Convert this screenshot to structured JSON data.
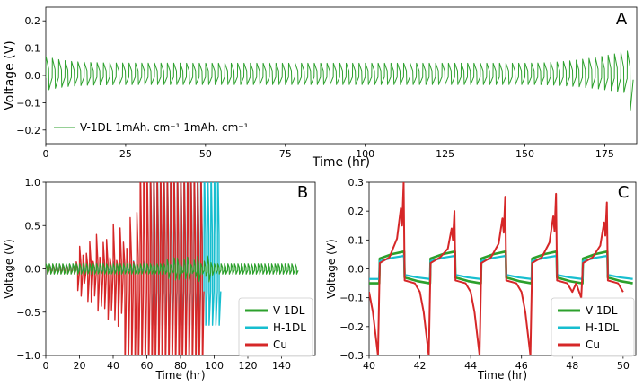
{
  "chart_data": [
    {
      "type": "line",
      "panel_label": "A",
      "xlabel": "Time (hr)",
      "ylabel": "Voltage (V)",
      "xlim": [
        0,
        185
      ],
      "ylim": [
        -0.25,
        0.25
      ],
      "xticks": [
        0,
        25,
        50,
        75,
        100,
        125,
        150,
        175
      ],
      "yticks": [
        -0.2,
        -0.1,
        0.0,
        0.1,
        0.2
      ],
      "legend_position": "lower-left",
      "series": [
        {
          "name": "V-1DL",
          "legend_label": "V-1DL 1mAh. cm⁻¹ 1mAh. cm⁻¹",
          "color": "#2ca02c",
          "cycle_period_hr": 2,
          "start_hr": 0,
          "end_hr": 184,
          "peak_voltage_start": 0.07,
          "peak_voltage_mid": 0.045,
          "peak_voltage_end": 0.095,
          "min_voltage_end": -0.13
        }
      ]
    },
    {
      "type": "line",
      "panel_label": "B",
      "xlabel": "Time (hr)",
      "ylabel": "Voltage (V)",
      "xlim": [
        0,
        160
      ],
      "ylim": [
        -1.0,
        1.0
      ],
      "xticks": [
        0,
        20,
        40,
        60,
        80,
        100,
        120,
        140
      ],
      "yticks": [
        -1.0,
        -0.5,
        0.0,
        0.5,
        1.0
      ],
      "legend_position": "lower-right",
      "series": [
        {
          "name": "V-1DL",
          "color": "#2ca02c",
          "cycle_period_hr": 2,
          "end_hr": 150,
          "amplitude_v": 0.06
        },
        {
          "name": "H-1DL",
          "color": "#17becf",
          "cycle_period_hr": 2,
          "short_circuit_start_hr": 62,
          "end_hr": 103
        },
        {
          "name": "Cu",
          "color": "#d62728",
          "cycle_period_hr": 2,
          "short_circuit_start_hr": 56,
          "end_hr": 93,
          "peak_amplitude_v": 0.45
        }
      ]
    },
    {
      "type": "line",
      "panel_label": "C",
      "xlabel": "Time (hr)",
      "ylabel": "Voltage (V)",
      "xlim": [
        40,
        50.5
      ],
      "ylim": [
        -0.3,
        0.3
      ],
      "xticks": [
        40,
        42,
        44,
        46,
        48,
        50
      ],
      "yticks": [
        -0.3,
        -0.2,
        -0.1,
        0.0,
        0.1,
        0.2,
        0.3
      ],
      "legend_position": "lower-right",
      "series": [
        {
          "name": "V-1DL",
          "color": "#2ca02c",
          "cycle_period_hr": 2,
          "high_v": 0.06,
          "low_v": -0.05
        },
        {
          "name": "H-1DL",
          "color": "#17becf",
          "cycle_period_hr": 2,
          "high_v": 0.045,
          "low_v": -0.035
        },
        {
          "name": "Cu",
          "color": "#d62728",
          "cycle_period_hr": 2,
          "peak_v": [
            0.3,
            0.2,
            0.25,
            0.26,
            0.23
          ],
          "trough_v": [
            -0.3,
            -0.3,
            -0.3,
            -0.3,
            -0.1
          ]
        }
      ]
    }
  ]
}
